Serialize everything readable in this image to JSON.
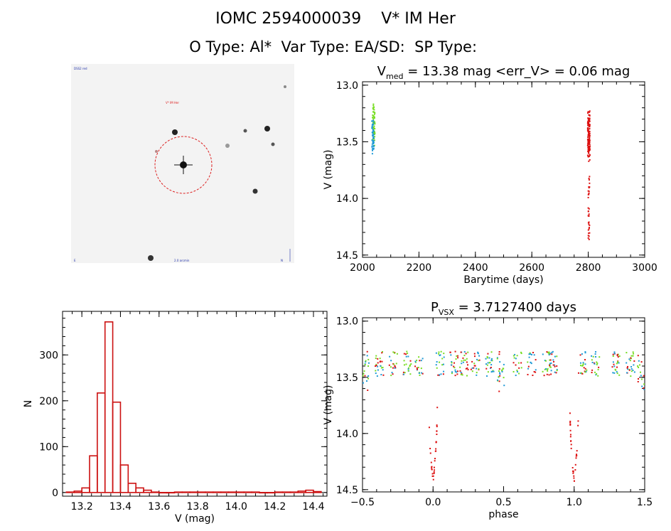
{
  "header": {
    "object_name": "IOMC 2594000039",
    "star_name": "V* IM Her",
    "o_type_label": "O Type:",
    "o_type_value": "Al*",
    "var_type_label": "Var Type:",
    "var_type_value": "EA/SD:",
    "sp_type_label": "SP Type:",
    "sp_type_value": ""
  },
  "colors": {
    "red": "#dd1111",
    "green": "#77dd22",
    "blue": "#1f9ad6",
    "histogram": "#cc1111",
    "circle": "#dd2222"
  },
  "chart_data": [
    {
      "id": "lightcurve",
      "type": "scatter",
      "title": "V_med = 13.38 mag <err_V> = 0.06 mag",
      "title_parts": {
        "main": "V",
        "sub": "med",
        "rest": " = 13.38 mag <err_V> = 0.06 mag"
      },
      "xlabel": "Barytime (days)",
      "ylabel": "V (mag)",
      "xlim": [
        2000,
        3000
      ],
      "ylim": [
        14.52,
        12.97
      ],
      "y_inverted": true,
      "xticks": [
        2000,
        2200,
        2400,
        2600,
        2800,
        3000
      ],
      "xtick_labels": [
        "2000",
        "2200",
        "2400",
        "2600",
        "2800",
        "3000"
      ],
      "yticks": [
        13.0,
        13.5,
        14.0,
        14.5
      ],
      "ytick_labels": [
        "13.0",
        "13.5",
        "14.0",
        "14.5"
      ],
      "series": [
        {
          "color": "green",
          "x_range": [
            2036,
            2044
          ],
          "y_range": [
            13.13,
            13.58
          ],
          "approx_points": 60
        },
        {
          "color": "blue",
          "x_range": [
            2033,
            2040
          ],
          "y_range": [
            13.28,
            13.64
          ],
          "approx_points": 50
        },
        {
          "color": "red",
          "x_range": [
            2798,
            2806
          ],
          "y_range": [
            13.22,
            13.68
          ],
          "approx_points": 120
        },
        {
          "color": "red",
          "x_range": [
            2800,
            2805
          ],
          "y_range": [
            13.8,
            14.4
          ],
          "approx_points": 35
        }
      ]
    },
    {
      "id": "histogram",
      "type": "bar",
      "xlabel": "V (mag)",
      "ylabel": "N",
      "xlim": [
        13.1,
        14.47
      ],
      "ylim": [
        -8,
        395
      ],
      "xticks": [
        13.2,
        13.4,
        13.6,
        13.8,
        14.0,
        14.2,
        14.4
      ],
      "xtick_labels": [
        "13.2",
        "13.4",
        "13.6",
        "13.8",
        "14.0",
        "14.2",
        "14.4"
      ],
      "yticks": [
        0,
        100,
        200,
        300
      ],
      "ytick_labels": [
        "0",
        "100",
        "200",
        "300"
      ],
      "bin_width": 0.04,
      "bin_left_edges": [
        13.12,
        13.16,
        13.2,
        13.24,
        13.28,
        13.32,
        13.36,
        13.4,
        13.44,
        13.48,
        13.52,
        13.56,
        13.6,
        13.64,
        13.68,
        13.72,
        13.76,
        13.8,
        13.84,
        13.88,
        13.92,
        13.96,
        14.0,
        14.04,
        14.08,
        14.12,
        14.16,
        14.2,
        14.24,
        14.28,
        14.32,
        14.36,
        14.4
      ],
      "values": [
        1,
        3,
        10,
        80,
        217,
        372,
        197,
        60,
        20,
        10,
        5,
        1,
        0,
        0,
        1,
        1,
        1,
        1,
        1,
        1,
        1,
        1,
        1,
        1,
        1,
        0,
        0,
        1,
        1,
        1,
        3,
        5,
        2
      ]
    },
    {
      "id": "phased",
      "type": "scatter",
      "title": "P_VSX = 3.7127400 days",
      "title_parts": {
        "main": "P",
        "sub": "VSX",
        "rest": " = 3.7127400 days"
      },
      "xlabel": "phase",
      "ylabel": "V (mag)",
      "xlim": [
        -0.5,
        1.5
      ],
      "ylim": [
        14.52,
        12.97
      ],
      "y_inverted": true,
      "xticks": [
        -0.5,
        0.0,
        0.5,
        1.0,
        1.5
      ],
      "xtick_labels": [
        "−0.5",
        "0.0",
        "0.5",
        "1.0",
        "1.5"
      ],
      "yticks": [
        13.0,
        13.5,
        14.0,
        14.5
      ],
      "ytick_labels": [
        "13.0",
        "13.5",
        "14.0",
        "14.5"
      ],
      "period_days": 3.71274,
      "baseline_mag": 13.38,
      "primary_eclipse_min_mag": 14.45,
      "secondary_dip_mag": 13.5,
      "series_colors": [
        "red",
        "green",
        "blue"
      ]
    }
  ],
  "finder": {
    "tl_label": "DSS2 red",
    "center_label": "V* IM Her",
    "bl_label": "E",
    "bc_label": "2.0 arcmin",
    "br_label": "N"
  }
}
